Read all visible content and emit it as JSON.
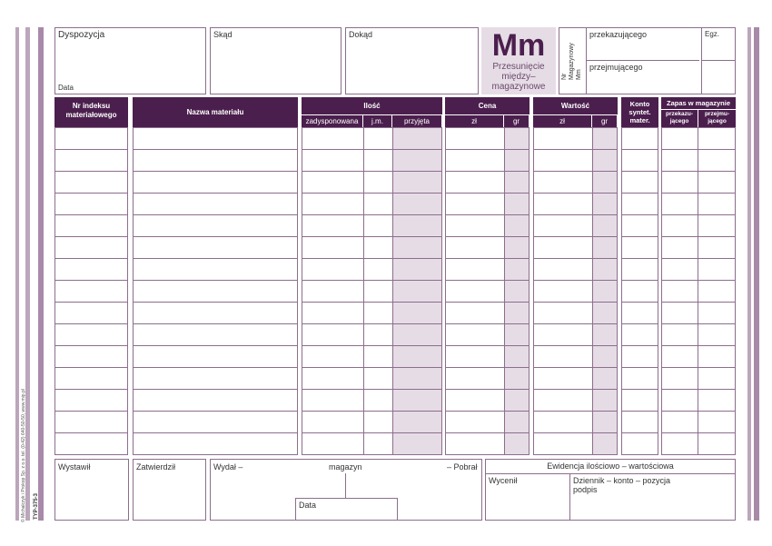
{
  "top": {
    "dyspozycja": "Dyspozycja",
    "data": "Data",
    "skad": "Skąd",
    "dokad": "Dokąd",
    "symbol": "Mm",
    "doc_name": [
      "Przesunięcie",
      "między–",
      "magazynowe"
    ],
    "nr_label": [
      "Nr",
      "Magazynowy",
      "Mm"
    ],
    "przekazujacego": "przekazującego",
    "przejmujacego": "przejmującego",
    "egz": "Egz."
  },
  "table": {
    "nr_indeksu": [
      "Nr indeksu",
      "materiałowego"
    ],
    "nazwa": "Nazwa materiału",
    "ilosc": "Ilość",
    "ilosc_sub": [
      "zadysponowana",
      "j.m.",
      "przyjęta"
    ],
    "cena": "Cena",
    "cena_sub": [
      "zł",
      "gr"
    ],
    "wartosc": "Wartość",
    "wartosc_sub": [
      "zł",
      "gr"
    ],
    "konto": [
      "Konto",
      "syntet.",
      "mater."
    ],
    "zapas": "Zapas w magazynie",
    "zapas_sub": [
      [
        "przekazu-",
        "jącego"
      ],
      [
        "przejmu-",
        "jącego"
      ]
    ]
  },
  "footer": {
    "wystawil": "Wystawił",
    "zatwierdzil": "Zatwierdził",
    "wydal": "Wydał –",
    "magazyn": "magazyn",
    "pobral": "– Pobrał",
    "data": "Data",
    "ewidencja": "Ewidencja ilościowo – wartościowa",
    "wycenil": "Wycenił",
    "dziennik": "Dziennik – konto – pozycja",
    "podpis": "podpis"
  },
  "side": {
    "publisher": "© Michalczyk i Prokop Sp. z o.o. tel. (0-42) 640-50-50, www.mip.pl",
    "code": "TYP-375-3"
  }
}
